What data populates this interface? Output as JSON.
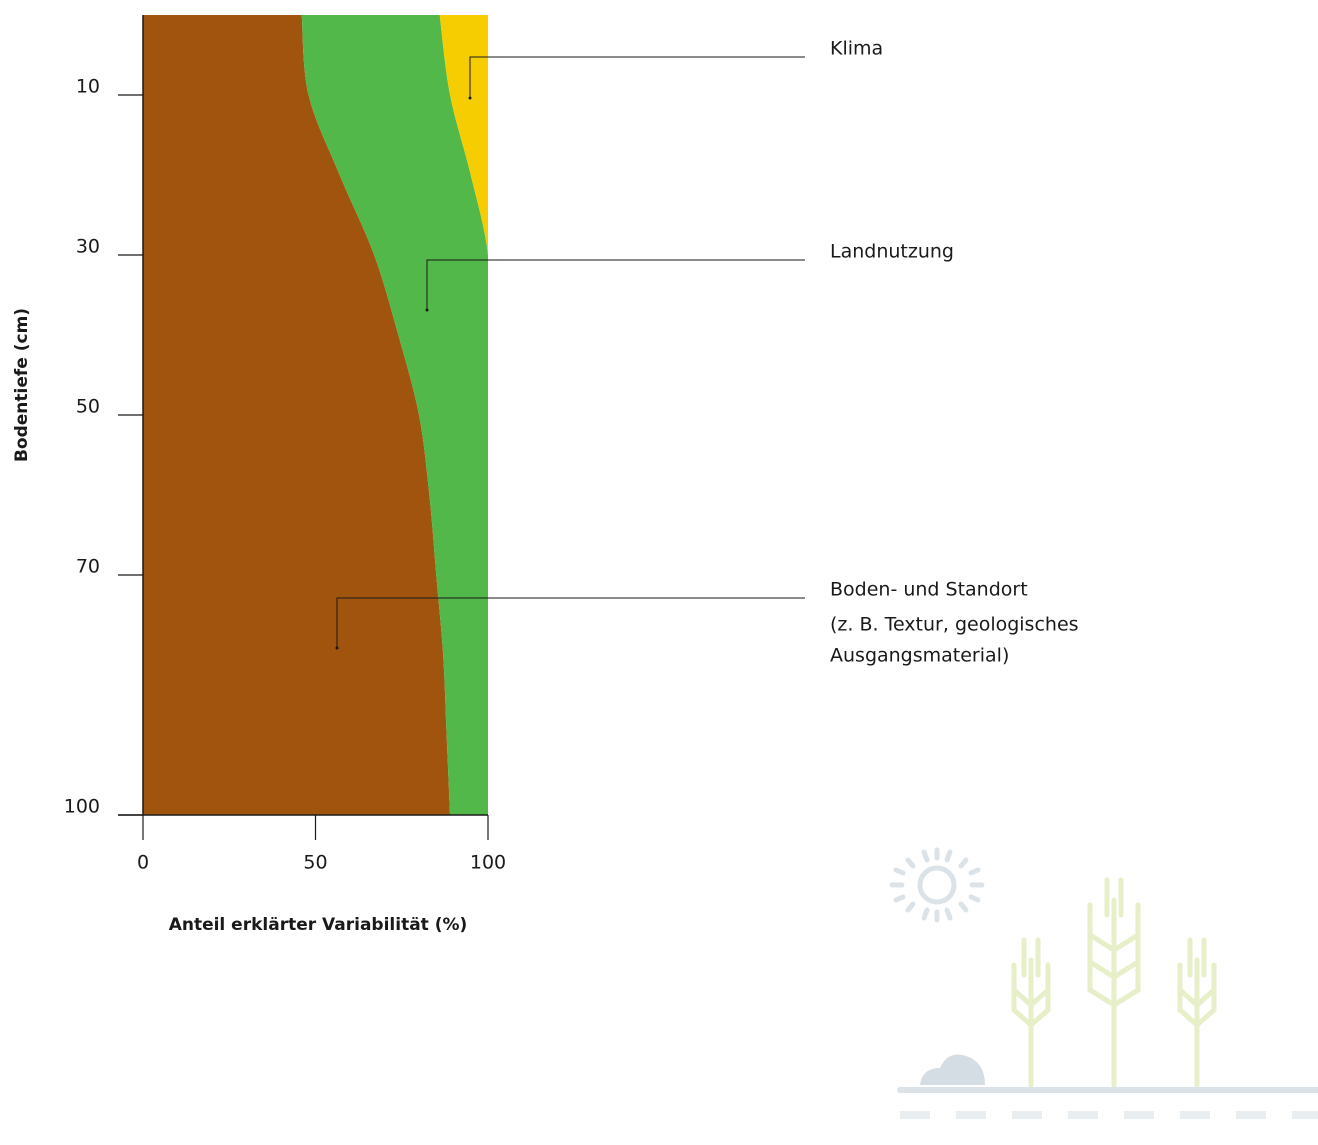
{
  "chart_data": {
    "type": "stacked_area_horizontal",
    "ylabel": "Bodentiefe (cm)",
    "xlabel": "Anteil erklärter Variabilität (%)",
    "depth": [
      0,
      10,
      20,
      30,
      40,
      50,
      60,
      70,
      80,
      90,
      100
    ],
    "series": [
      {
        "name": "Boden- und Standort",
        "color": "#a0540e",
        "values": [
          46,
          48,
          57,
          67,
          74,
          80,
          83,
          85,
          87,
          88,
          89
        ],
        "note": [
          "(z. B. Textur, geologisches",
          "Ausgangsmaterial)"
        ]
      },
      {
        "name": "Landnutzung",
        "color": "#52b84a",
        "values": [
          40,
          41,
          38,
          33,
          26,
          20,
          17,
          15,
          13,
          12,
          11
        ]
      },
      {
        "name": "Klima",
        "color": "#f5cd00",
        "values": [
          14,
          11,
          5,
          0,
          0,
          0,
          0,
          0,
          0,
          0,
          0
        ]
      }
    ],
    "xlim": [
      0,
      100
    ],
    "xticks": [
      0,
      50,
      100
    ],
    "ylim": [
      0,
      100
    ],
    "yticks": [
      10,
      30,
      50,
      70,
      100
    ],
    "y_inverted": true
  }
}
